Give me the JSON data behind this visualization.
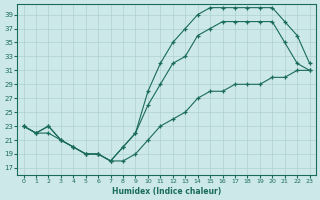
{
  "xlabel": "Humidex (Indice chaleur)",
  "bg_color": "#cce8e8",
  "grid_color": "#b0d0d0",
  "line_color": "#1a6b5a",
  "xlim": [
    -0.5,
    23.5
  ],
  "ylim": [
    16,
    40.5
  ],
  "xticks": [
    0,
    1,
    2,
    3,
    4,
    5,
    6,
    7,
    8,
    9,
    10,
    11,
    12,
    13,
    14,
    15,
    16,
    17,
    18,
    19,
    20,
    21,
    22,
    23
  ],
  "yticks": [
    17,
    19,
    21,
    23,
    25,
    27,
    29,
    31,
    33,
    35,
    37,
    39
  ],
  "curve_top_x": [
    0,
    1,
    2,
    3,
    4,
    5,
    6,
    7,
    8,
    9,
    10,
    11,
    12,
    13,
    14,
    15,
    16,
    17,
    18,
    19,
    20,
    21,
    22,
    23
  ],
  "curve_top_y": [
    23,
    22,
    23,
    21,
    20,
    19,
    19,
    18,
    20,
    22,
    28,
    32,
    35,
    37,
    39,
    40,
    40,
    40,
    40,
    40,
    40,
    38,
    36,
    32
  ],
  "curve_mid_x": [
    0,
    1,
    2,
    3,
    4,
    5,
    6,
    7,
    8,
    9,
    10,
    11,
    12,
    13,
    14,
    15,
    16,
    17,
    18,
    19,
    20,
    21,
    22,
    23
  ],
  "curve_mid_y": [
    23,
    22,
    23,
    21,
    20,
    19,
    19,
    18,
    20,
    22,
    26,
    29,
    32,
    33,
    36,
    37,
    38,
    38,
    38,
    38,
    38,
    35,
    32,
    31
  ],
  "curve_bot_x": [
    0,
    1,
    2,
    3,
    4,
    5,
    6,
    7,
    8,
    9,
    10,
    11,
    12,
    13,
    14,
    15,
    16,
    17,
    18,
    19,
    20,
    21,
    22,
    23
  ],
  "curve_bot_y": [
    23,
    22,
    22,
    21,
    20,
    19,
    19,
    18,
    18,
    19,
    21,
    23,
    24,
    25,
    27,
    28,
    28,
    29,
    29,
    29,
    30,
    30,
    31,
    31
  ]
}
